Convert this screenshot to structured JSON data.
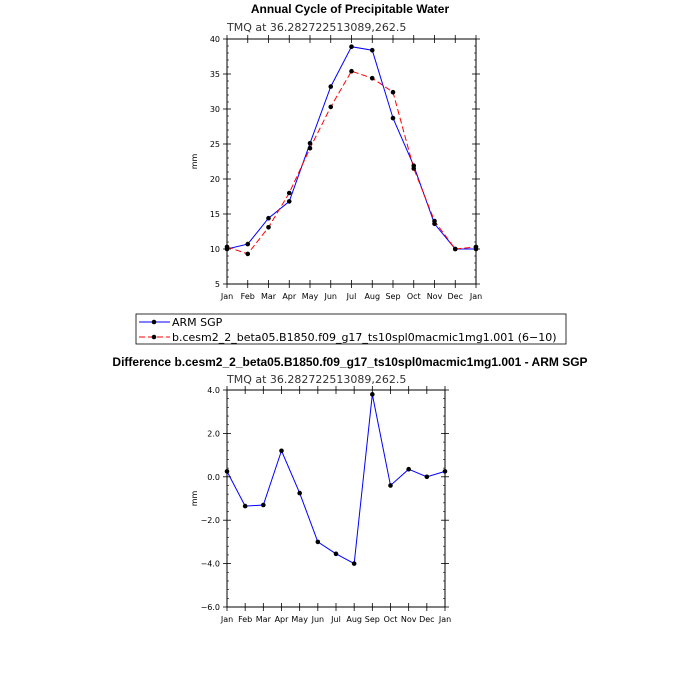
{
  "chart_data": [
    {
      "type": "line",
      "title": "Annual Cycle of Precipitable Water",
      "subtitle": "TMQ at 36.282722513089,262.5",
      "ylabel": "mm",
      "ylim": [
        5,
        40
      ],
      "yticks": [
        "5",
        "10",
        "15",
        "20",
        "25",
        "30",
        "35",
        "40"
      ],
      "categories": [
        "Jan",
        "Feb",
        "Mar",
        "Apr",
        "May",
        "Jun",
        "Jul",
        "Aug",
        "Sep",
        "Oct",
        "Nov",
        "Dec",
        "Jan"
      ],
      "series": [
        {
          "name": "ARM SGP",
          "color": "#0000ff",
          "dash": "solid",
          "values": [
            10.0,
            10.7,
            14.4,
            16.8,
            25.1,
            33.2,
            38.9,
            38.4,
            28.7,
            21.9,
            13.6,
            10.0,
            10.0
          ]
        },
        {
          "name": "b.cesm2_2_beta05.B1850.f09_g17_ts10spl0macmic1mg1.001 (6−10)",
          "color": "#ff0000",
          "dash": "dashed",
          "values": [
            10.3,
            9.3,
            13.1,
            18.0,
            24.4,
            30.3,
            35.4,
            34.4,
            32.4,
            21.5,
            14.0,
            10.0,
            10.3
          ]
        }
      ],
      "legend_position": "below"
    },
    {
      "type": "line",
      "title": "Difference b.cesm2_2_beta05.B1850.f09_g17_ts10spl0macmic1mg1.001 - ARM SGP",
      "subtitle": "TMQ at 36.282722513089,262.5",
      "ylabel": "mm",
      "ylim": [
        -6,
        4
      ],
      "yticks": [
        "−6.0",
        "−4.0",
        "−2.0",
        "0.0",
        "2.0",
        "4.0"
      ],
      "categories": [
        "Jan",
        "Feb",
        "Mar",
        "Apr",
        "May",
        "Jun",
        "Jul",
        "Aug",
        "Sep",
        "Oct",
        "Nov",
        "Dec",
        "Jan"
      ],
      "series": [
        {
          "color": "#0000ff",
          "dash": "solid",
          "values": [
            0.25,
            -1.35,
            -1.3,
            1.2,
            -0.75,
            -3.0,
            -3.55,
            -4.0,
            3.8,
            -0.4,
            0.35,
            0.0,
            0.25
          ]
        }
      ]
    }
  ]
}
